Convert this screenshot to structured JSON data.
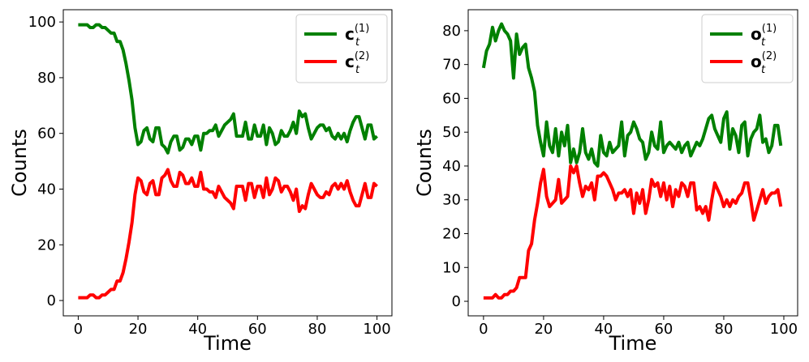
{
  "chart_data": [
    {
      "type": "line",
      "x_label": "Time",
      "y_label": "Counts",
      "legend": "upper right",
      "line_width": 4,
      "xlim": [
        -5,
        105
      ],
      "ylim": [
        -5.5,
        104.4
      ],
      "xticks": [
        0,
        20,
        40,
        60,
        80,
        100
      ],
      "yticks": [
        0,
        20,
        40,
        60,
        80,
        100
      ],
      "x": [
        0,
        1,
        2,
        3,
        4,
        5,
        6,
        7,
        8,
        9,
        10,
        11,
        12,
        13,
        14,
        15,
        16,
        17,
        18,
        19,
        20,
        21,
        22,
        23,
        24,
        25,
        26,
        27,
        28,
        29,
        30,
        31,
        32,
        33,
        34,
        35,
        36,
        37,
        38,
        39,
        40,
        41,
        42,
        43,
        44,
        45,
        46,
        47,
        48,
        49,
        50,
        51,
        52,
        53,
        54,
        55,
        56,
        57,
        58,
        59,
        60,
        61,
        62,
        63,
        64,
        65,
        66,
        67,
        68,
        69,
        70,
        71,
        72,
        73,
        74,
        75,
        76,
        77,
        78,
        79,
        80,
        81,
        82,
        83,
        84,
        85,
        86,
        87,
        88,
        89,
        90,
        91,
        92,
        93,
        94,
        95,
        96,
        97,
        98,
        99,
        100
      ],
      "series": [
        {
          "name": "c",
          "subscript": "t",
          "superscript": "(1)",
          "color": "#008000",
          "values": [
            99,
            99,
            99,
            99,
            98,
            98,
            99,
            99,
            98,
            98,
            97,
            96,
            96,
            93,
            93,
            90,
            85,
            79,
            72,
            62,
            56,
            57,
            61,
            62,
            58,
            57,
            62,
            62,
            56,
            55,
            53,
            57,
            59,
            59,
            54,
            55,
            58,
            58,
            56,
            59,
            59,
            54,
            60,
            60,
            61,
            61,
            63,
            59,
            61,
            63,
            64,
            65,
            67,
            59,
            59,
            59,
            64,
            58,
            58,
            63,
            59,
            59,
            63,
            56,
            62,
            60,
            56,
            57,
            61,
            59,
            59,
            61,
            64,
            60,
            68,
            66,
            67,
            62,
            58,
            60,
            62,
            63,
            63,
            61,
            62,
            59,
            58,
            60,
            58,
            60,
            57,
            61,
            64,
            66,
            66,
            62,
            58,
            63,
            63,
            58,
            59
          ]
        },
        {
          "name": "c",
          "subscript": "t",
          "superscript": "(2)",
          "color": "#ff0000",
          "values": [
            1,
            1,
            1,
            1,
            2,
            2,
            1,
            1,
            2,
            2,
            3,
            4,
            4,
            7,
            7,
            10,
            15,
            21,
            28,
            38,
            44,
            43,
            39,
            38,
            42,
            43,
            38,
            38,
            44,
            45,
            47,
            43,
            41,
            41,
            46,
            45,
            42,
            42,
            44,
            41,
            41,
            46,
            40,
            40,
            39,
            39,
            37,
            41,
            39,
            37,
            36,
            35,
            33,
            41,
            41,
            41,
            36,
            42,
            42,
            37,
            41,
            41,
            37,
            44,
            38,
            40,
            44,
            43,
            39,
            41,
            41,
            39,
            36,
            40,
            32,
            34,
            33,
            38,
            42,
            40,
            38,
            37,
            37,
            39,
            38,
            41,
            42,
            40,
            42,
            40,
            43,
            39,
            36,
            34,
            34,
            38,
            42,
            37,
            37,
            42,
            41
          ]
        }
      ]
    },
    {
      "type": "line",
      "x_label": "Time",
      "y_label": "Counts",
      "legend": "upper right",
      "line_width": 4,
      "xlim": [
        -5.1,
        104.6
      ],
      "ylim": [
        -4.3,
        86.2
      ],
      "xticks": [
        0,
        20,
        40,
        60,
        80,
        100
      ],
      "yticks": [
        0,
        10,
        20,
        30,
        40,
        50,
        60,
        70,
        80
      ],
      "x": [
        0,
        1,
        2,
        3,
        4,
        5,
        6,
        7,
        8,
        9,
        10,
        11,
        12,
        13,
        14,
        15,
        16,
        17,
        18,
        19,
        20,
        21,
        22,
        23,
        24,
        25,
        26,
        27,
        28,
        29,
        30,
        31,
        32,
        33,
        34,
        35,
        36,
        37,
        38,
        39,
        40,
        41,
        42,
        43,
        44,
        45,
        46,
        47,
        48,
        49,
        50,
        51,
        52,
        53,
        54,
        55,
        56,
        57,
        58,
        59,
        60,
        61,
        62,
        63,
        64,
        65,
        66,
        67,
        68,
        69,
        70,
        71,
        72,
        73,
        74,
        75,
        76,
        77,
        78,
        79,
        80,
        81,
        82,
        83,
        84,
        85,
        86,
        87,
        88,
        89,
        90,
        91,
        92,
        93,
        94,
        95,
        96,
        97,
        98,
        99
      ],
      "series": [
        {
          "name": "o",
          "subscript": "t",
          "superscript": "(1)",
          "color": "#008000",
          "values": [
            69,
            74,
            76,
            81,
            77,
            80,
            82,
            80,
            79,
            77,
            66,
            79,
            73,
            75,
            76,
            69,
            66,
            62,
            52,
            47,
            43,
            53,
            46,
            44,
            51,
            43,
            50,
            46,
            52,
            41,
            45,
            41,
            44,
            51,
            44,
            42,
            45,
            41,
            40,
            49,
            44,
            43,
            47,
            44,
            45,
            46,
            53,
            43,
            49,
            50,
            53,
            51,
            48,
            47,
            42,
            44,
            50,
            46,
            45,
            53,
            44,
            46,
            47,
            46,
            45,
            47,
            44,
            46,
            47,
            43,
            45,
            47,
            46,
            48,
            51,
            54,
            55,
            51,
            49,
            47,
            54,
            56,
            45,
            51,
            49,
            44,
            52,
            53,
            43,
            48,
            50,
            51,
            55,
            47,
            48,
            44,
            46,
            52,
            52,
            46
          ]
        },
        {
          "name": "o",
          "subscript": "t",
          "superscript": "(2)",
          "color": "#ff0000",
          "values": [
            1,
            1,
            1,
            1,
            2,
            1,
            1,
            2,
            2,
            3,
            3,
            4,
            7,
            7,
            7,
            15,
            17,
            24,
            29,
            35,
            39,
            31,
            28,
            29,
            30,
            36,
            29,
            30,
            31,
            40,
            38,
            40,
            35,
            31,
            34,
            33,
            35,
            30,
            37,
            37,
            38,
            37,
            35,
            33,
            30,
            32,
            32,
            33,
            31,
            33,
            26,
            32,
            29,
            33,
            26,
            30,
            36,
            34,
            35,
            31,
            35,
            30,
            34,
            28,
            33,
            31,
            35,
            34,
            31,
            35,
            35,
            27,
            28,
            26,
            28,
            24,
            30,
            35,
            33,
            31,
            28,
            30,
            28,
            30,
            29,
            31,
            32,
            35,
            35,
            30,
            24,
            27,
            30,
            33,
            29,
            31,
            32,
            32,
            33,
            28
          ]
        }
      ]
    }
  ]
}
